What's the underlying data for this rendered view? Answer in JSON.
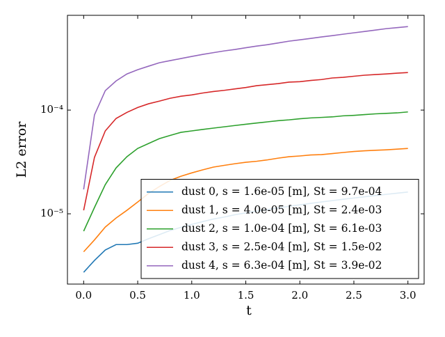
{
  "chart_data": {
    "type": "line",
    "xlabel": "t",
    "ylabel": "L2 error",
    "yscale": "log",
    "xlim": [
      -0.15,
      3.15
    ],
    "xticks": [
      {
        "value": 0,
        "label": "0.0"
      },
      {
        "value": 0.5,
        "label": "0.5"
      },
      {
        "value": 1,
        "label": "1.0"
      },
      {
        "value": 1.5,
        "label": "1.5"
      },
      {
        "value": 2,
        "label": "2.0"
      },
      {
        "value": 2.5,
        "label": "2.5"
      },
      {
        "value": 3,
        "label": "3.0"
      }
    ],
    "ylim": [
      2.1e-06,
      0.00082
    ],
    "yticks": [
      {
        "value": 1e-05,
        "label": "10⁻⁵"
      },
      {
        "value": 0.0001,
        "label": "10⁻⁴"
      }
    ],
    "legend": "lower right",
    "x": [
      0,
      0.1,
      0.2,
      0.3,
      0.4,
      0.5,
      0.6,
      0.7,
      0.8,
      0.9,
      1.0,
      1.1,
      1.2,
      1.3,
      1.4,
      1.5,
      1.6,
      1.7,
      1.8,
      1.9,
      2.0,
      2.1,
      2.2,
      2.3,
      2.4,
      2.5,
      2.6,
      2.7,
      2.8,
      2.9,
      3.0
    ],
    "series": [
      {
        "name": "dust 0, s = 1.6e-05 [m], St = 9.7e-04",
        "color": "#1f77b4",
        "values": [
          2.73e-06,
          3.55e-06,
          4.48e-06,
          5.05e-06,
          5.05e-06,
          5.2e-06,
          5.75e-06,
          6.3e-06,
          6.9e-06,
          7.4e-06,
          7.9e-06,
          8.4e-06,
          8.9e-06,
          9.3e-06,
          9.8e-06,
          1.02e-05,
          1.06e-05,
          1.1e-05,
          1.14e-05,
          1.18e-05,
          1.22e-05,
          1.26e-05,
          1.3e-05,
          1.34e-05,
          1.38e-05,
          1.42e-05,
          1.46e-05,
          1.5e-05,
          1.54e-05,
          1.58e-05,
          1.62e-05
        ]
      },
      {
        "name": "dust 1, s = 4.0e-05 [m], St = 2.4e-03",
        "color": "#ff7f0e",
        "values": [
          4.3e-06,
          5.6e-06,
          7.45e-06,
          9.1e-06,
          1.08e-05,
          1.3e-05,
          1.57e-05,
          1.83e-05,
          2.1e-05,
          2.3e-05,
          2.48e-05,
          2.65e-05,
          2.82e-05,
          2.93e-05,
          3.04e-05,
          3.14e-05,
          3.21e-05,
          3.31e-05,
          3.44e-05,
          3.55e-05,
          3.61e-05,
          3.69e-05,
          3.72e-05,
          3.81e-05,
          3.9e-05,
          3.99e-05,
          4.05e-05,
          4.1e-05,
          4.14e-05,
          4.2e-05,
          4.27e-05
        ]
      },
      {
        "name": "dust 2, s = 1.0e-04 [m], St = 6.1e-03",
        "color": "#2ca02c",
        "values": [
          6.8e-06,
          1.15e-05,
          1.91e-05,
          2.77e-05,
          3.55e-05,
          4.27e-05,
          4.76e-05,
          5.3e-05,
          5.7e-05,
          6.1e-05,
          6.3e-05,
          6.5e-05,
          6.7e-05,
          6.9e-05,
          7.1e-05,
          7.3e-05,
          7.5e-05,
          7.7e-05,
          7.9e-05,
          8.05e-05,
          8.25e-05,
          8.4e-05,
          8.5e-05,
          8.6e-05,
          8.8e-05,
          8.9e-05,
          9.05e-05,
          9.2e-05,
          9.3e-05,
          9.4e-05,
          9.6e-05
        ]
      },
      {
        "name": "dust 3, s = 2.5e-04 [m], St = 1.5e-02",
        "color": "#d62728",
        "values": [
          1.08e-05,
          3.5e-05,
          6.3e-05,
          8.3e-05,
          9.5e-05,
          0.000106,
          0.000115,
          0.000122,
          0.00013,
          0.000136,
          0.00014,
          0.000146,
          0.000151,
          0.000155,
          0.00016,
          0.000165,
          0.000172,
          0.000176,
          0.00018,
          0.000186,
          0.000188,
          0.000193,
          0.000197,
          0.000204,
          0.000207,
          0.000212,
          0.000217,
          0.00022,
          0.000223,
          0.000227,
          0.00023
        ]
      },
      {
        "name": "dust 4, s = 6.3e-04 [m], St = 3.9e-02",
        "color": "#9467bd",
        "values": [
          1.72e-05,
          8.98e-05,
          0.000154,
          0.000191,
          0.000223,
          0.000245,
          0.000265,
          0.000286,
          0.0003,
          0.000314,
          0.000329,
          0.000344,
          0.000358,
          0.000372,
          0.000384,
          0.000399,
          0.000414,
          0.000427,
          0.000444,
          0.000462,
          0.000476,
          0.000491,
          0.000507,
          0.000522,
          0.000539,
          0.000556,
          0.000573,
          0.000591,
          0.00061,
          0.000624,
          0.000638
        ]
      }
    ]
  }
}
